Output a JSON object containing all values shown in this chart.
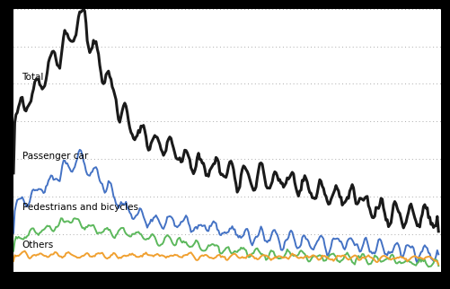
{
  "background_color": "#000000",
  "plot_bg_color": "#ffffff",
  "n_points": 341,
  "ylim": [
    0,
    1050
  ],
  "ytick_positions": [
    150,
    300,
    450,
    600,
    750,
    900,
    1050
  ],
  "grid_color": "#aaaaaa",
  "grid_style": ":",
  "labels": {
    "total": "Total",
    "passenger_car": "Passenger car",
    "pedestrians": "Pedestrians and bicycles",
    "others": "Others"
  },
  "colors": {
    "total": "#1a1a1a",
    "passenger_car": "#4472c4",
    "pedestrians": "#5cb85c",
    "others": "#f0a030"
  },
  "linewidths": {
    "total": 2.2,
    "passenger_car": 1.4,
    "pedestrians": 1.4,
    "others": 1.4
  }
}
